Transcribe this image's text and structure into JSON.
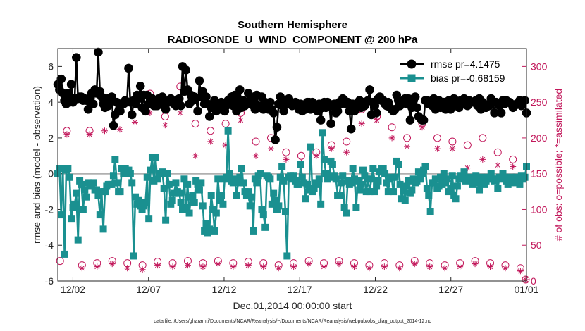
{
  "chart_data": {
    "type": "line",
    "title": [
      "Southern Hemisphere",
      "RADIOSONDE_U_WIND_COMPONENT @ 200 hPa"
    ],
    "xlabel": "Dec.01,2014 00:00:00 start",
    "ylabel_left": "rmse and bias (model - observation)",
    "ylabel_right": "# of obs: o=possible; *=assimilated",
    "xlim_days": [
      0.0,
      31.0
    ],
    "ylim_left": [
      -6,
      7
    ],
    "ylim_right": [
      0,
      325
    ],
    "x_ticks": [
      {
        "day": 1,
        "label": "12/02"
      },
      {
        "day": 6,
        "label": "12/07"
      },
      {
        "day": 11,
        "label": "12/12"
      },
      {
        "day": 16,
        "label": "12/17"
      },
      {
        "day": 21,
        "label": "12/22"
      },
      {
        "day": 26,
        "label": "12/27"
      },
      {
        "day": 31,
        "label": "01/01"
      }
    ],
    "y_ticks_left": [
      -6,
      -4,
      -2,
      0,
      2,
      4,
      6
    ],
    "y_ticks_right": [
      0,
      50,
      100,
      150,
      200,
      250,
      300
    ],
    "zero_line": 0,
    "legend": {
      "placement": "top-right"
    },
    "series": [
      {
        "name": "rmse pr=4.1475",
        "axis": "left",
        "marker": "circle",
        "color": "#000000",
        "values": [
          5.0,
          4.7,
          5.3,
          4.5,
          4.1,
          3.9,
          4.5,
          4.0,
          5.0,
          4.0,
          4.2,
          6.5,
          4.2,
          4.3,
          4.3,
          4.1,
          4.2,
          4.1,
          3.6,
          4.2,
          4.5,
          3.9,
          4.7,
          4.5,
          6.8,
          4.6,
          4.3,
          3.9,
          3.7,
          4.2,
          3.8,
          4.2,
          4.3,
          2.7,
          3.3,
          4.0,
          3.5,
          3.5,
          3.9,
          3.9,
          4.1,
          4.0,
          5.9,
          4.0,
          3.3,
          4.1,
          3.9,
          4.4,
          4.2,
          4.9,
          3.7,
          4.4,
          3.5,
          4.4,
          3.9,
          4.0,
          4.2,
          3.8,
          3.8,
          3.8,
          4.2,
          4.0,
          4.3,
          3.8,
          3.6,
          4.0,
          4.0,
          4.2,
          4.0,
          3.9,
          3.8,
          4.1,
          4.2,
          3.8,
          6.0,
          4.6,
          5.8,
          4.7,
          3.9,
          4.4,
          4.1,
          4.3,
          4.2,
          3.5,
          5.2,
          4.3,
          4.6,
          3.9,
          4.3,
          3.9,
          3.2,
          3.7,
          3.9,
          4.1,
          3.5,
          3.8,
          3.6,
          4.0,
          3.8,
          3.5,
          3.8,
          4.1,
          3.9,
          4.3,
          3.8,
          4.4,
          3.5,
          4.1,
          4.7,
          3.7,
          4.1,
          3.8,
          3.9,
          4.5,
          3.9,
          4.1,
          3.8,
          3.6,
          4.4,
          3.8,
          3.7,
          4.3,
          3.6,
          4.0,
          3.8,
          3.6,
          4.0,
          3.6,
          3.4,
          1.9,
          2.6,
          3.9,
          4.3,
          3.8,
          3.5,
          4.0,
          3.9,
          4.2,
          4.0,
          3.8,
          3.9,
          4.0,
          3.9,
          3.6,
          3.9,
          3.5,
          3.8,
          3.6,
          4.0,
          4.0,
          3.6,
          4.0,
          3.9,
          3.7,
          3.5,
          3.9,
          3.0,
          3.7,
          4.0,
          3.7,
          4.0,
          3.9,
          2.8,
          3.8,
          3.9,
          3.4,
          3.5,
          4.0,
          3.9,
          4.2,
          4.1,
          3.9,
          4.0,
          3.5,
          2.5,
          3.9,
          3.5,
          3.8,
          3.9,
          4.1,
          3.7,
          4.0,
          3.8,
          4.0,
          4.1,
          4.7,
          3.3,
          4.0,
          3.8,
          3.4,
          4.2,
          4.3,
          4.1,
          4.1,
          3.9,
          3.8,
          4.0,
          3.7,
          3.6,
          3.5,
          3.6,
          4.4,
          4.1,
          3.8,
          4.0,
          4.1,
          4.2,
          3.9,
          4.2,
          3.0,
          3.7,
          4.1,
          4.3,
          3.7,
          3.2,
          3.1,
          3.0,
          3.0,
          4.1,
          4.1,
          3.9,
          4.0,
          3.8,
          4.2,
          3.6,
          3.8,
          4.1,
          3.7,
          3.8,
          4.0,
          3.6,
          4.0,
          4.1,
          3.6,
          4.0,
          4.2,
          3.9,
          4.0,
          3.7,
          4.1,
          4.0,
          4.2,
          4.1,
          3.8,
          4.1,
          4.0,
          4.0,
          4.0,
          4.1,
          3.8,
          4.2,
          3.6,
          4.0,
          3.9,
          3.7,
          3.8,
          3.8,
          4.2,
          4.0,
          3.4,
          4.0,
          3.9,
          3.8,
          3.4,
          4.1,
          3.9,
          4.1,
          4.0,
          4.0,
          3.9,
          3.7,
          3.8,
          3.9,
          3.9,
          4.1,
          3.8,
          4.0,
          4.1,
          3.4
        ]
      },
      {
        "name": "bias pr=-0.68159",
        "axis": "left",
        "marker": "square",
        "color": "#1a9090",
        "values": [
          0.0,
          0.3,
          -2.3,
          0.3,
          -4.5,
          0.2,
          0.3,
          -0.2,
          -2.5,
          -1.9,
          -1.7,
          -1.1,
          -3.7,
          -0.4,
          -0.6,
          -2.0,
          -0.9,
          -1.3,
          -0.5,
          -0.6,
          -0.7,
          -0.5,
          -0.9,
          -0.9,
          -1.2,
          -2.3,
          -1.0,
          -3.1,
          -1.0,
          -0.7,
          -0.6,
          -0.6,
          -0.6,
          -0.1,
          0.8,
          -0.5,
          -1.0,
          -1.0,
          0.3,
          0.0,
          0.3,
          0.2,
          0.2,
          0.0,
          -0.5,
          -4.6,
          -1.3,
          -1.7,
          -1.5,
          -1.8,
          -2.0,
          -1.8,
          -1.6,
          -0.2,
          -2.5,
          0.2,
          0.9,
          -0.4,
          0.9,
          -0.3,
          0.0,
          0.0,
          0.1,
          -0.8,
          -2.6,
          0.0,
          -0.6,
          -1.7,
          -1.5,
          -1.1,
          -0.5,
          -1.0,
          -1.1,
          -1.6,
          -2.0,
          -0.3,
          -1.9,
          -0.6,
          -2.2,
          -1.3,
          -1.2,
          -1.6,
          -0.4,
          -0.6,
          -0.9,
          -0.5,
          -1.8,
          -3.2,
          -2.8,
          -3.3,
          -3.1,
          -1.2,
          -2.0,
          -3.2,
          -2.2,
          -0.3,
          -1.5,
          -1.2,
          -1.7,
          -0.3,
          -0.2,
          2.4,
          0.0,
          -0.4,
          -0.5,
          -0.3,
          -1.2,
          -0.5,
          -0.2,
          0.3,
          -0.5,
          -1.0,
          -1.2,
          -1.0,
          -1.8,
          -1.3,
          -3.2,
          -0.3,
          -0.5,
          -0.1,
          0.0,
          -2.0,
          -2.3,
          -3.0,
          -0.1,
          -0.2,
          -0.3,
          -1.7,
          -1.1,
          -1.5,
          -2.0,
          -1.8,
          -0.2,
          0.4,
          -0.4,
          -2.1,
          -4.6,
          -0.2,
          -0.1,
          -0.3,
          -0.1,
          -0.4,
          -0.6,
          -0.6,
          0.5,
          -0.2,
          -0.5,
          -1.4,
          -0.6,
          -0.9,
          1.5,
          -1.0,
          -0.8,
          -0.5,
          -0.6,
          -0.3,
          -1.7,
          2.3,
          0.8,
          0.0,
          -0.3,
          -0.2,
          0.7,
          0.5,
          -0.1,
          -0.3,
          -1.2,
          -1.2,
          -0.5,
          -0.1,
          -1.9,
          -2.2,
          -0.4,
          -0.6,
          -0.5,
          0.3,
          -0.3,
          -1.9,
          -0.4,
          -0.9,
          -0.6,
          0.2,
          -0.1,
          -1.0,
          -0.3,
          -1.0,
          -0.3,
          0.3,
          -1.0,
          -0.7,
          -0.4,
          0.1,
          0.3,
          0.3,
          0.0,
          -0.5,
          -1.0,
          -0.3,
          -0.2,
          -1.0,
          -0.2,
          0.7,
          0.5,
          -0.6,
          -1.4,
          -0.8,
          -1.5,
          -0.7,
          -0.4,
          -1.1,
          -0.9,
          -0.3,
          -0.5,
          -0.4,
          0.1,
          -0.3,
          0.0,
          0.2,
          0.4,
          -0.8,
          -1.2,
          -2.1,
          -0.5,
          -0.5,
          -0.3,
          -0.8,
          -0.7,
          -0.2,
          -0.6,
          0.0,
          -0.5,
          -0.3,
          -1.0,
          -0.8,
          -0.1,
          -1.2,
          -1.4,
          -0.7,
          -0.3,
          -0.1,
          -0.2,
          0.1,
          -0.4,
          -0.3,
          -0.2,
          -0.3,
          -0.6,
          -0.4,
          -0.1,
          -0.5,
          -0.9,
          -0.2,
          -0.3,
          -0.6,
          -0.4,
          -0.2,
          -0.3,
          0.0,
          -0.3,
          -0.4,
          -0.3,
          -0.8,
          -0.2,
          -0.3,
          0.0,
          -0.2,
          -0.4,
          -0.6,
          -0.3,
          -0.2,
          -0.5,
          -0.4,
          -0.2,
          -0.3,
          -0.6,
          -0.1,
          -0.3,
          -0.2,
          0.4
        ]
      },
      {
        "name": "",
        "axis": "right",
        "marker": "circle-open",
        "color": "#c2185b",
        "points": [
          [
            0.15,
            28
          ],
          [
            0.6,
            210
          ],
          [
            1.1,
            255
          ],
          [
            1.6,
            22
          ],
          [
            2.1,
            210
          ],
          [
            2.6,
            25
          ],
          [
            3.1,
            245
          ],
          [
            3.6,
            28
          ],
          [
            4.1,
            240
          ],
          [
            4.6,
            25
          ],
          [
            5.1,
            248
          ],
          [
            5.6,
            22
          ],
          [
            6.1,
            262
          ],
          [
            6.6,
            27
          ],
          [
            7.1,
            230
          ],
          [
            7.6,
            25
          ],
          [
            8.1,
            272
          ],
          [
            8.6,
            28
          ],
          [
            9.1,
            220
          ],
          [
            9.6,
            25
          ],
          [
            10.1,
            210
          ],
          [
            10.6,
            28
          ],
          [
            11.1,
            220
          ],
          [
            11.6,
            25
          ],
          [
            12.1,
            235
          ],
          [
            12.6,
            27
          ],
          [
            13.1,
            195
          ],
          [
            13.6,
            25
          ],
          [
            14.1,
            200
          ],
          [
            14.6,
            22
          ],
          [
            15.1,
            180
          ],
          [
            15.6,
            25
          ],
          [
            16.1,
            175
          ],
          [
            16.6,
            28
          ],
          [
            17.1,
            180
          ],
          [
            17.6,
            25
          ],
          [
            18.1,
            190
          ],
          [
            18.6,
            28
          ],
          [
            19.1,
            195
          ],
          [
            19.6,
            25
          ],
          [
            20.1,
            240
          ],
          [
            20.6,
            22
          ],
          [
            21.1,
            230
          ],
          [
            21.6,
            25
          ],
          [
            22.1,
            215
          ],
          [
            22.6,
            22
          ],
          [
            23.1,
            200
          ],
          [
            23.6,
            28
          ],
          [
            24.1,
            220
          ],
          [
            24.6,
            25
          ],
          [
            25.1,
            200
          ],
          [
            25.6,
            22
          ],
          [
            26.1,
            195
          ],
          [
            26.6,
            25
          ],
          [
            27.1,
            190
          ],
          [
            27.6,
            28
          ],
          [
            28.1,
            200
          ],
          [
            28.6,
            25
          ],
          [
            29.1,
            180
          ],
          [
            29.6,
            22
          ],
          [
            30.1,
            170
          ],
          [
            30.6,
            18
          ],
          [
            30.95,
            2
          ]
        ]
      },
      {
        "name": "",
        "axis": "right",
        "marker": "asterisk",
        "color": "#c2185b",
        "points": [
          [
            0.15,
            278
          ],
          [
            0.6,
            205
          ],
          [
            1.1,
            250
          ],
          [
            1.6,
            18
          ],
          [
            2.1,
            205
          ],
          [
            2.6,
            20
          ],
          [
            3.1,
            210
          ],
          [
            3.6,
            24
          ],
          [
            4.1,
            212
          ],
          [
            4.6,
            18
          ],
          [
            5.1,
            222
          ],
          [
            5.6,
            16
          ],
          [
            6.1,
            235
          ],
          [
            6.6,
            22
          ],
          [
            7.1,
            218
          ],
          [
            7.6,
            20
          ],
          [
            8.1,
            235
          ],
          [
            8.6,
            22
          ],
          [
            9.1,
            175
          ],
          [
            9.6,
            20
          ],
          [
            10.1,
            195
          ],
          [
            10.6,
            24
          ],
          [
            11.1,
            190
          ],
          [
            11.6,
            20
          ],
          [
            12.1,
            225
          ],
          [
            12.6,
            22
          ],
          [
            13.1,
            175
          ],
          [
            13.6,
            20
          ],
          [
            14.1,
            185
          ],
          [
            14.6,
            18
          ],
          [
            15.1,
            170
          ],
          [
            15.6,
            20
          ],
          [
            16.1,
            165
          ],
          [
            16.6,
            24
          ],
          [
            17.1,
            175
          ],
          [
            17.6,
            20
          ],
          [
            18.1,
            185
          ],
          [
            18.6,
            24
          ],
          [
            19.1,
            180
          ],
          [
            19.6,
            20
          ],
          [
            20.1,
            220
          ],
          [
            20.6,
            18
          ],
          [
            21.1,
            225
          ],
          [
            21.6,
            20
          ],
          [
            22.1,
            200
          ],
          [
            22.6,
            18
          ],
          [
            23.1,
            188
          ],
          [
            23.6,
            24
          ],
          [
            24.1,
            215
          ],
          [
            24.6,
            20
          ],
          [
            25.1,
            185
          ],
          [
            25.6,
            18
          ],
          [
            26.1,
            185
          ],
          [
            26.6,
            20
          ],
          [
            27.1,
            158
          ],
          [
            27.6,
            24
          ],
          [
            28.1,
            170
          ],
          [
            28.6,
            20
          ],
          [
            29.1,
            162
          ],
          [
            29.6,
            18
          ],
          [
            30.1,
            160
          ],
          [
            30.6,
            14
          ],
          [
            30.95,
            2
          ]
        ]
      }
    ]
  },
  "footer_text": "data file: /Users/gharamti/Documents/NCAR/Reanalysis/~/Documents/NCAR/Reanalysis/webpub/obs_diag_output_2014-12.nc"
}
